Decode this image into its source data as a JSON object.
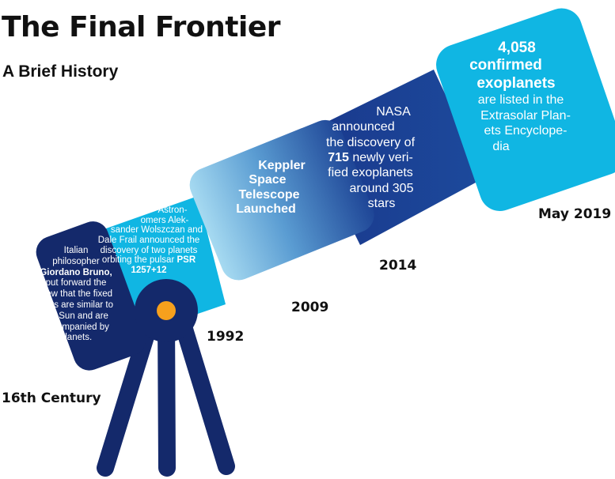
{
  "header": {
    "title": "The Final Frontier",
    "subtitle": "A Brief History"
  },
  "colors": {
    "dark_navy": "#14296b",
    "navy": "#1b3f91",
    "cyan": "#10b6e3",
    "sky": "#9fd6ef",
    "orange": "#f7a01d"
  },
  "milestones": [
    {
      "date": "16th Century",
      "lines": [
        "Italian",
        "philosopher",
        "Giordano Bruno,",
        "put forward the",
        "view that the fixed",
        "stars are similar to",
        "the Sun and are",
        "accompanied by",
        "planets."
      ]
    },
    {
      "date": "1992",
      "lines": [
        "Astron-",
        "omers Alek-",
        "sander Wolszczan and",
        "Dale Frail announced the",
        "discovery of two planets",
        "orbiting the pulsar PSR",
        "1257+12"
      ]
    },
    {
      "date": "2009",
      "lines": [
        "Keppler",
        "Space",
        "Telescope",
        "Launched"
      ]
    },
    {
      "date": "2014",
      "lines": [
        "NASA",
        "announced",
        "the discovery of",
        "715 newly veri-",
        "fied exoplanets",
        "around 305",
        "stars"
      ]
    },
    {
      "date": "May 2019",
      "lines": [
        "4,058",
        "confirmed",
        "exoplanets",
        "are listed in the",
        "Extrasolar Plan-",
        "ets Encyclope-",
        "dia"
      ]
    }
  ]
}
